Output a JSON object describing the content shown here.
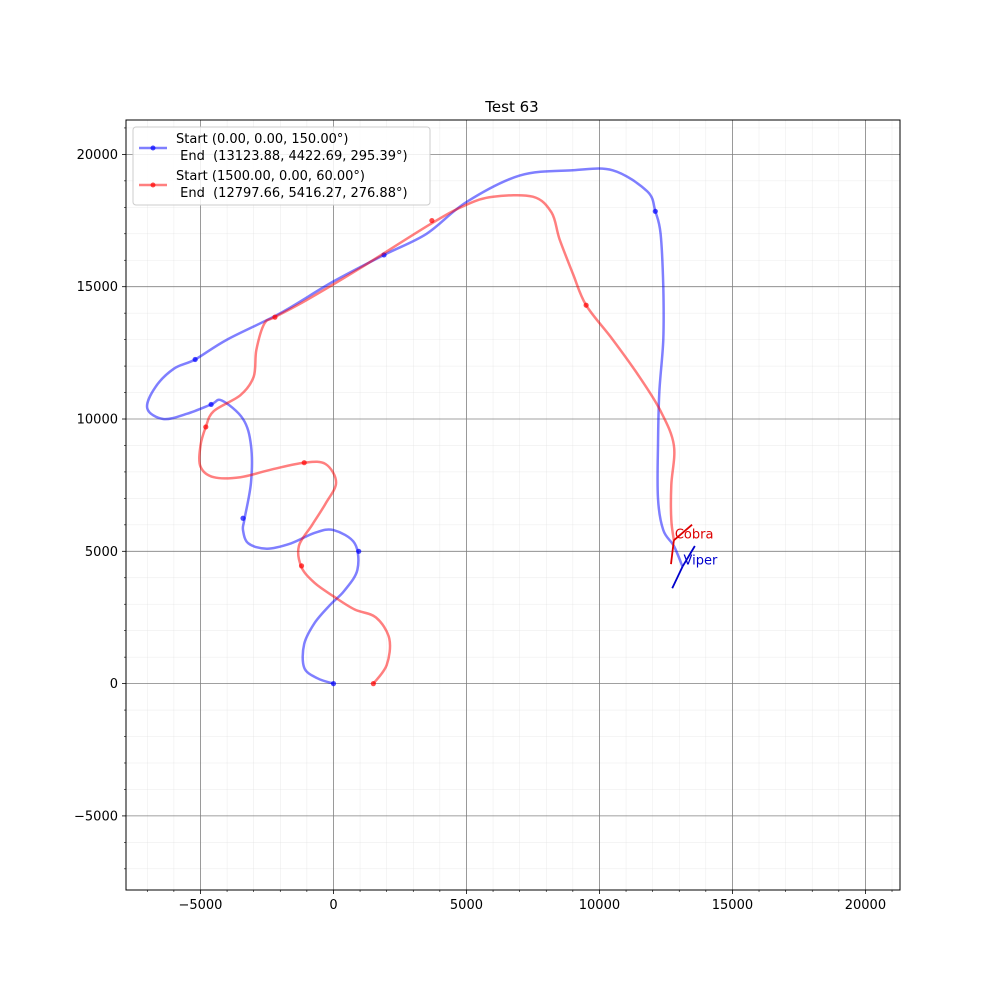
{
  "chart_data": {
    "type": "line",
    "title": "Test 63",
    "xlabel": "",
    "ylabel": "",
    "xlim": [
      -7800,
      21300
    ],
    "ylim": [
      -7800,
      21300
    ],
    "x_ticks": [
      -5000,
      0,
      5000,
      10000,
      15000,
      20000
    ],
    "x_tick_labels": [
      "−5000",
      "0",
      "5000",
      "10000",
      "15000",
      "20000"
    ],
    "y_ticks": [
      -5000,
      0,
      5000,
      10000,
      15000,
      20000
    ],
    "y_tick_labels": [
      "−5000",
      "0",
      "5000",
      "10000",
      "15000",
      "20000"
    ],
    "grid": true,
    "minor_grid": true,
    "legend_position": "top-left",
    "series": [
      {
        "label_line1": "Start (0.00, 0.00, 150.00°)",
        "label_line2": " End  (13123.88, 4422.69, 295.39°)",
        "color": "#0000ff",
        "points": [
          [
            0,
            0
          ],
          [
            -600,
            200
          ],
          [
            -1100,
            600
          ],
          [
            -1100,
            1500
          ],
          [
            -700,
            2300
          ],
          [
            -100,
            3000
          ],
          [
            400,
            3500
          ],
          [
            900,
            4300
          ],
          [
            800,
            5300
          ],
          [
            0,
            5800
          ],
          [
            -700,
            5700
          ],
          [
            -1600,
            5300
          ],
          [
            -2500,
            5100
          ],
          [
            -3200,
            5300
          ],
          [
            -3400,
            5800
          ],
          [
            -3350,
            6200
          ],
          [
            -3100,
            7600
          ],
          [
            -3100,
            9000
          ],
          [
            -3400,
            10000
          ],
          [
            -4200,
            10700
          ],
          [
            -4600,
            10550
          ],
          [
            -5500,
            10200
          ],
          [
            -6400,
            10000
          ],
          [
            -7000,
            10400
          ],
          [
            -6700,
            11200
          ],
          [
            -6000,
            11900
          ],
          [
            -5200,
            12250
          ],
          [
            -4000,
            13000
          ],
          [
            -2000,
            14000
          ],
          [
            0,
            15200
          ],
          [
            1900,
            16200
          ],
          [
            3500,
            17000
          ],
          [
            5000,
            18200
          ],
          [
            7000,
            19200
          ],
          [
            9000,
            19400
          ],
          [
            10500,
            19400
          ],
          [
            11800,
            18600
          ],
          [
            12100,
            17850
          ],
          [
            12300,
            17000
          ],
          [
            12400,
            15000
          ],
          [
            12400,
            13000
          ],
          [
            12250,
            11000
          ],
          [
            12200,
            9000
          ],
          [
            12200,
            7000
          ],
          [
            12400,
            5800
          ],
          [
            12800,
            5200
          ],
          [
            13123.88,
            4422.69
          ]
        ],
        "markers": [
          [
            0,
            0
          ],
          [
            950,
            5000
          ],
          [
            -3400,
            6250
          ],
          [
            -4600,
            10550
          ],
          [
            -5200,
            12250
          ],
          [
            1900,
            16200
          ],
          [
            12100,
            17850
          ]
        ]
      },
      {
        "label_line1": "Start (1500.00, 0.00, 60.00°)",
        "label_line2": " End  (12797.66, 5416.27, 276.88°)",
        "color": "#ff0000",
        "points": [
          [
            1500,
            0
          ],
          [
            2000,
            700
          ],
          [
            2100,
            1700
          ],
          [
            1600,
            2500
          ],
          [
            800,
            2800
          ],
          [
            0,
            3300
          ],
          [
            -700,
            3800
          ],
          [
            -1200,
            4400
          ],
          [
            -1300,
            5200
          ],
          [
            -800,
            6000
          ],
          [
            -300,
            6800
          ],
          [
            100,
            7600
          ],
          [
            -300,
            8300
          ],
          [
            -1100,
            8350
          ],
          [
            -2300,
            8100
          ],
          [
            -3500,
            7800
          ],
          [
            -4500,
            7800
          ],
          [
            -5000,
            8200
          ],
          [
            -5000,
            9000
          ],
          [
            -4800,
            9700
          ],
          [
            -4500,
            10300
          ],
          [
            -3500,
            10900
          ],
          [
            -3000,
            11600
          ],
          [
            -2900,
            12600
          ],
          [
            -2600,
            13600
          ],
          [
            -2200,
            13850
          ],
          [
            -1000,
            14500
          ],
          [
            1000,
            15700
          ],
          [
            3700,
            17400
          ],
          [
            5000,
            18100
          ],
          [
            6000,
            18400
          ],
          [
            7500,
            18400
          ],
          [
            8200,
            17800
          ],
          [
            8500,
            16800
          ],
          [
            9000,
            15500
          ],
          [
            9500,
            14300
          ],
          [
            10500,
            13000
          ],
          [
            11500,
            11600
          ],
          [
            12300,
            10300
          ],
          [
            12800,
            9000
          ],
          [
            12700,
            7500
          ],
          [
            12700,
            6200
          ],
          [
            12797.66,
            5416.27
          ]
        ],
        "markers": [
          [
            1500,
            0
          ],
          [
            -1200,
            4450
          ],
          [
            -1100,
            8350
          ],
          [
            -4800,
            9700
          ],
          [
            -2200,
            13850
          ],
          [
            3700,
            17500
          ],
          [
            9500,
            14300
          ]
        ]
      }
    ],
    "annotations": [
      {
        "text": "Viper",
        "x": 13123.88,
        "y": 4422.69,
        "heading_deg": 295.39,
        "color": "#0000cc"
      },
      {
        "text": "Cobra",
        "x": 12797.66,
        "y": 5416.27,
        "heading_deg": 276.88,
        "color": "#dd0000"
      }
    ]
  }
}
